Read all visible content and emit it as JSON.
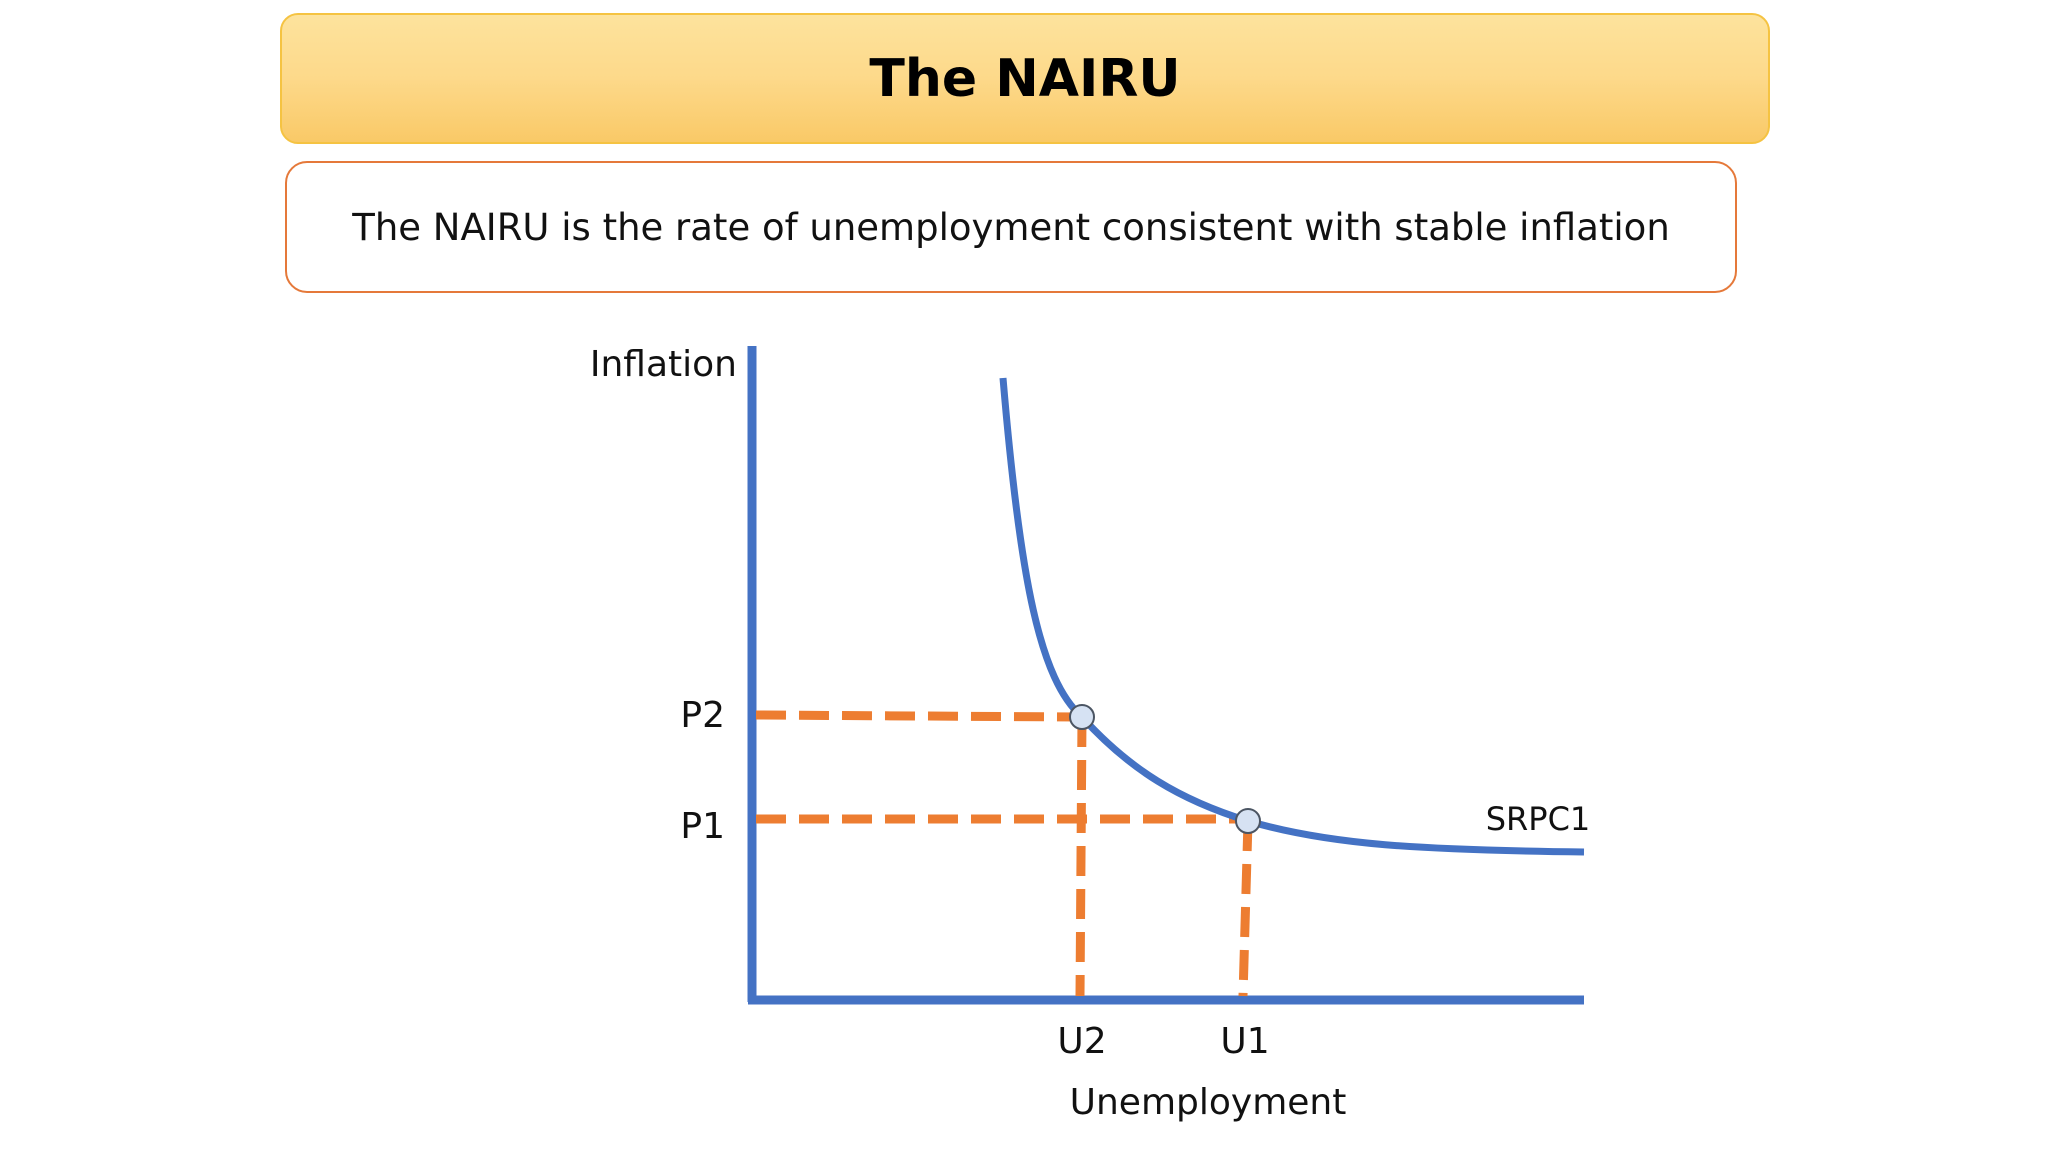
{
  "header": {
    "title": "The NAIRU"
  },
  "definition": {
    "text": "The NAIRU is the rate of unemployment consistent with stable inflation"
  },
  "diagram": {
    "y_axis_label": "Inflation",
    "x_axis_label": "Unemployment",
    "curve_label": "SRPC1",
    "y_ticks": [
      "P2",
      "P1"
    ],
    "x_ticks": [
      "U2",
      "U1"
    ],
    "colors": {
      "axis": "#4472c4",
      "curve": "#4472c4",
      "guide_lines": "#ed7d31",
      "point_fill": "#d6e2f3",
      "title_banner": "#fdd98a",
      "definition_border": "#e5793a"
    }
  }
}
